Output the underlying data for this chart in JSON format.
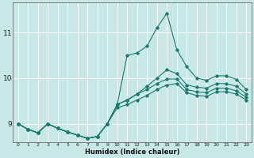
{
  "xlabel": "Humidex (Indice chaleur)",
  "bg_color": "#c8e8e8",
  "grid_color": "#ffffff",
  "line_color": "#1a7a6e",
  "x_values": [
    0,
    1,
    2,
    3,
    4,
    5,
    6,
    7,
    8,
    9,
    10,
    11,
    12,
    13,
    14,
    15,
    16,
    17,
    18,
    19,
    20,
    21,
    22,
    23
  ],
  "series": [
    [
      9.0,
      8.88,
      8.8,
      9.0,
      8.9,
      8.82,
      8.75,
      8.68,
      8.72,
      9.0,
      9.42,
      10.5,
      10.55,
      10.7,
      11.1,
      11.42,
      10.62,
      10.25,
      10.0,
      9.95,
      10.05,
      10.05,
      9.97,
      9.75
    ],
    [
      9.0,
      8.88,
      8.8,
      9.0,
      8.9,
      8.82,
      8.75,
      8.68,
      8.72,
      9.0,
      9.42,
      9.52,
      9.65,
      9.82,
      10.0,
      10.18,
      10.1,
      9.85,
      9.8,
      9.78,
      9.88,
      9.88,
      9.82,
      9.65
    ],
    [
      9.0,
      8.88,
      8.8,
      9.0,
      8.9,
      8.82,
      8.75,
      8.68,
      8.72,
      9.0,
      9.42,
      9.52,
      9.65,
      9.75,
      9.88,
      9.98,
      9.98,
      9.75,
      9.7,
      9.68,
      9.78,
      9.78,
      9.72,
      9.58
    ],
    [
      9.0,
      8.88,
      8.8,
      9.0,
      8.9,
      8.82,
      8.75,
      8.68,
      8.72,
      9.0,
      9.35,
      9.42,
      9.52,
      9.62,
      9.75,
      9.85,
      9.88,
      9.68,
      9.62,
      9.6,
      9.7,
      9.7,
      9.65,
      9.52
    ]
  ],
  "ylim": [
    8.6,
    11.65
  ],
  "yticks": [
    9,
    10,
    11
  ],
  "xticks": [
    0,
    1,
    2,
    3,
    4,
    5,
    6,
    7,
    8,
    9,
    10,
    11,
    12,
    13,
    14,
    15,
    16,
    17,
    18,
    19,
    20,
    21,
    22,
    23
  ]
}
